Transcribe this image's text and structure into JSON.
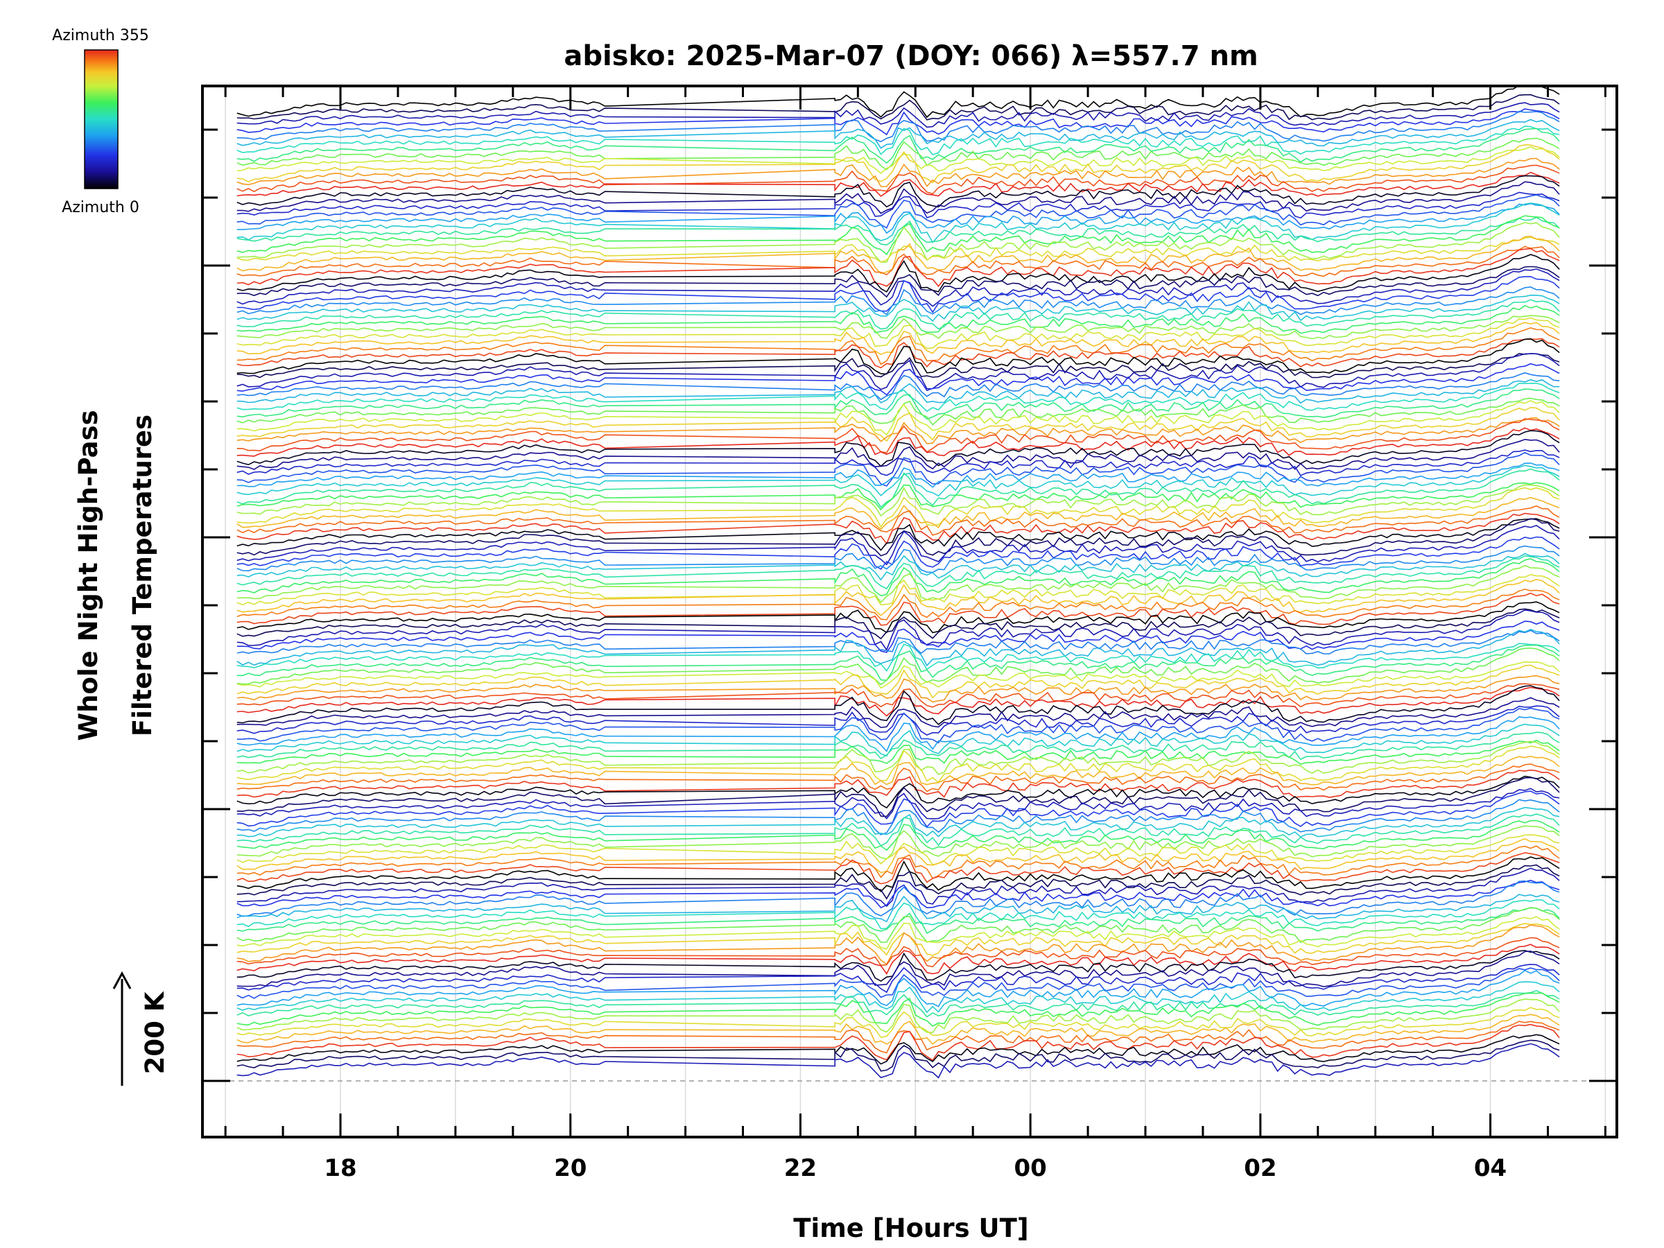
{
  "chart_data": {
    "type": "line",
    "title": "abisko: 2025-Mar-07 (DOY: 066) λ=557.7 nm",
    "xlabel": "Time [Hours UT]",
    "ylabel_lines": [
      "Whole Night High-Pass",
      "Filtered Temperatures"
    ],
    "scale_bar_label": "200 K",
    "x_tick_labels": [
      "18",
      "20",
      "22",
      "00",
      "02",
      "04"
    ],
    "x_tick_hours": [
      18,
      20,
      22,
      24,
      26,
      28
    ],
    "xlim_hours_ut": [
      16.8,
      29.1
    ],
    "data_start_hour": 17.1,
    "data_end_hour": 28.6,
    "gap_hours": [
      20.3,
      22.3
    ],
    "grid": true,
    "colorbar": {
      "min_label": "Azimuth 0",
      "max_label": "Azimuth 355",
      "azimuth_range": [
        0,
        355
      ],
      "colors": [
        "#000000",
        "#1a0f96",
        "#2232e6",
        "#1ea0f0",
        "#28dcc8",
        "#3cf05a",
        "#c8f03c",
        "#f5c828",
        "#f57814",
        "#e6281e"
      ]
    },
    "azimuth_cycle": [
      0,
      25,
      55,
      85,
      120,
      150,
      180,
      205,
      235,
      265,
      290,
      315,
      340,
      355,
      10,
      40,
      70,
      100,
      135,
      165,
      195,
      220,
      250,
      280,
      305,
      330,
      350,
      5,
      30,
      60,
      90,
      125,
      160,
      190,
      215,
      245,
      275,
      300,
      325,
      345
    ],
    "series_count": 150,
    "features": [
      {
        "name": "main wave",
        "hours": [
          22.45,
          22.75,
          22.9,
          23.15
        ],
        "deltas": [
          -10,
          18,
          -22,
          14
        ]
      },
      {
        "name": "pre-dawn dip",
        "hours": [
          26.4,
          26.8
        ],
        "deltas": [
          14,
          12
        ]
      },
      {
        "name": "pre-dawn peak",
        "hours": [
          28.25,
          28.55
        ],
        "deltas": [
          -26,
          10
        ]
      }
    ]
  }
}
